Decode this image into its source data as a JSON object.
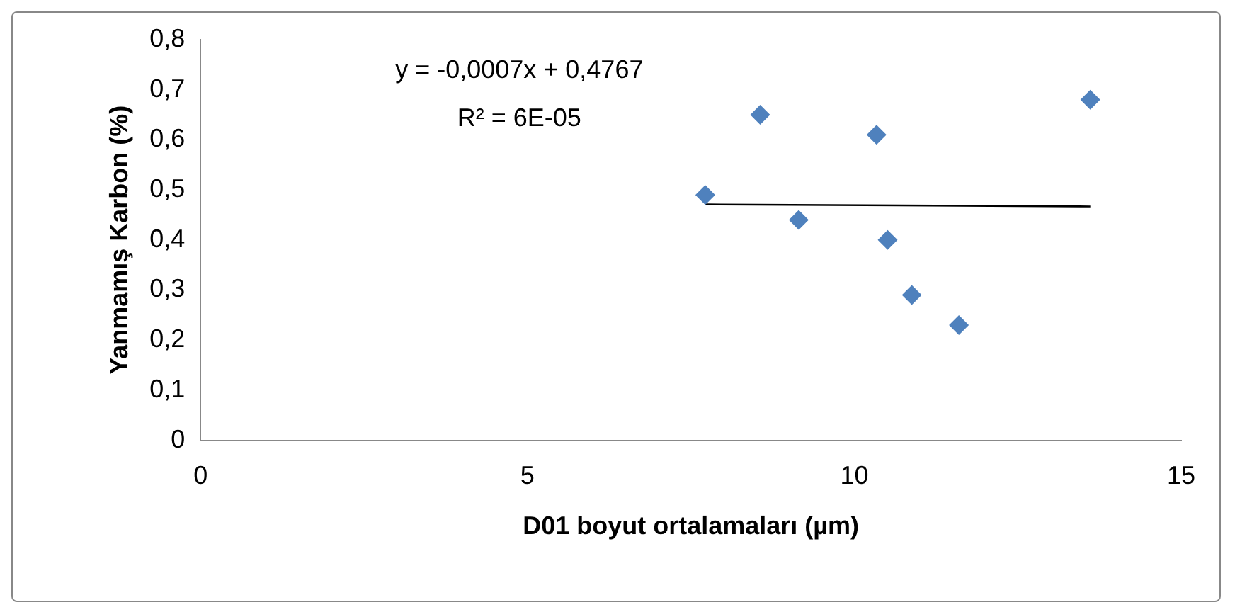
{
  "chart_data": {
    "type": "scatter",
    "xlabel": "D01 boyut ortalamaları (µm)",
    "ylabel": "Yanmamış Karbon (%)",
    "annotations": [
      "y = -0,0007x + 0,4767",
      "R² = 6E-05"
    ],
    "series": [
      {
        "type": "scatter",
        "color": "#4f81bd",
        "x": [
          7.72,
          8.56,
          9.15,
          10.34,
          10.51,
          10.88,
          11.6,
          13.61
        ],
        "values": [
          0.49,
          0.65,
          0.44,
          0.61,
          0.4,
          0.29,
          0.23,
          0.68
        ]
      },
      {
        "type": "line",
        "color": "#000000",
        "marker": "none",
        "x": [
          7.72,
          13.61
        ],
        "values": [
          0.471,
          0.467
        ]
      }
    ],
    "xlim": [
      0,
      15
    ],
    "xticks": [
      0,
      5,
      10,
      15
    ],
    "ylim": [
      0,
      0.8
    ],
    "yticks": [
      0,
      {
        "value": 0.1,
        "label": "0,1"
      },
      {
        "value": 0.2,
        "label": "0,2"
      },
      {
        "value": 0.3,
        "label": "0,3"
      },
      {
        "value": 0.4,
        "label": "0,4"
      },
      {
        "value": 0.5,
        "label": "0,5"
      },
      {
        "value": 0.6,
        "label": "0,6"
      },
      {
        "value": 0.7,
        "label": "0,7"
      },
      {
        "value": 0.8,
        "label": "0,8"
      }
    ],
    "grid": false,
    "legend": false,
    "marker": "diamond"
  }
}
